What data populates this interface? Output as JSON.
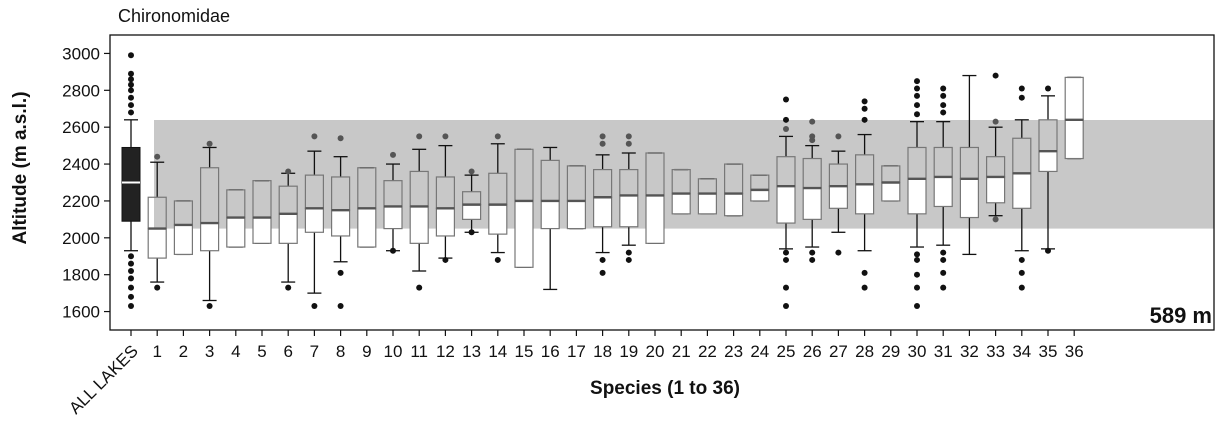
{
  "chart_data": {
    "type": "boxplot",
    "title": "Chironomidae",
    "xlabel": "Species (1 to 36)",
    "ylabel": "Altitude (m a.s.l.)",
    "ylim": [
      1500,
      3100
    ],
    "yticks": [
      1600,
      1800,
      2000,
      2200,
      2400,
      2600,
      2800,
      3000
    ],
    "categories": [
      "ALL LAKES",
      "1",
      "2",
      "3",
      "4",
      "5",
      "6",
      "7",
      "8",
      "9",
      "10",
      "11",
      "12",
      "13",
      "14",
      "15",
      "16",
      "17",
      "18",
      "19",
      "20",
      "21",
      "22",
      "23",
      "24",
      "25",
      "26",
      "27",
      "28",
      "29",
      "30",
      "31",
      "32",
      "33",
      "34",
      "35",
      "36"
    ],
    "band": {
      "low": 2050,
      "high": 2639,
      "label": "589 m",
      "color": "#c8c8c8"
    },
    "colors": {
      "all_lakes_box": "#222222",
      "species_box": "#777777",
      "band": "#c8c8c8",
      "range_label": "#aaaaaa"
    },
    "boxes": [
      {
        "category": "ALL LAKES",
        "whisker_low": 1930,
        "q1": 2090,
        "median": 2300,
        "q3": 2490,
        "whisker_high": 2640,
        "outliers": [
          1630,
          1680,
          1730,
          1780,
          1820,
          1860,
          1900,
          2680,
          2720,
          2760,
          2800,
          2830,
          2860,
          2890,
          2990
        ]
      },
      {
        "category": "1",
        "whisker_low": 1760,
        "q1": 1890,
        "median": 2050,
        "q3": 2220,
        "whisker_high": 2410,
        "outliers": [
          1730,
          2440
        ]
      },
      {
        "category": "2",
        "whisker_low": 1910,
        "q1": 1910,
        "median": 2070,
        "q3": 2200,
        "whisker_high": 2200,
        "outliers": []
      },
      {
        "category": "3",
        "whisker_low": 1660,
        "q1": 1930,
        "median": 2080,
        "q3": 2380,
        "whisker_high": 2490,
        "outliers": [
          1630,
          2510
        ]
      },
      {
        "category": "4",
        "whisker_low": 1950,
        "q1": 1950,
        "median": 2110,
        "q3": 2260,
        "whisker_high": 2260,
        "outliers": []
      },
      {
        "category": "5",
        "whisker_low": 1970,
        "q1": 1970,
        "median": 2110,
        "q3": 2310,
        "whisker_high": 2310,
        "outliers": []
      },
      {
        "category": "6",
        "whisker_low": 1760,
        "q1": 1970,
        "median": 2130,
        "q3": 2280,
        "whisker_high": 2350,
        "outliers": [
          1730,
          2360
        ]
      },
      {
        "category": "7",
        "whisker_low": 1700,
        "q1": 2030,
        "median": 2160,
        "q3": 2340,
        "whisker_high": 2470,
        "outliers": [
          1630,
          2550
        ]
      },
      {
        "category": "8",
        "whisker_low": 1870,
        "q1": 2010,
        "median": 2150,
        "q3": 2330,
        "whisker_high": 2440,
        "outliers": [
          1630,
          1810,
          2540
        ]
      },
      {
        "category": "9",
        "whisker_low": 1950,
        "q1": 1950,
        "median": 2160,
        "q3": 2380,
        "whisker_high": 2380,
        "outliers": []
      },
      {
        "category": "10",
        "whisker_low": 1930,
        "q1": 2050,
        "median": 2170,
        "q3": 2310,
        "whisker_high": 2400,
        "outliers": [
          1930,
          2450
        ]
      },
      {
        "category": "11",
        "whisker_low": 1820,
        "q1": 1970,
        "median": 2170,
        "q3": 2360,
        "whisker_high": 2480,
        "outliers": [
          1730,
          2550
        ]
      },
      {
        "category": "12",
        "whisker_low": 1890,
        "q1": 2010,
        "median": 2160,
        "q3": 2330,
        "whisker_high": 2500,
        "outliers": [
          1880,
          2550
        ]
      },
      {
        "category": "13",
        "whisker_low": 2030,
        "q1": 2100,
        "median": 2180,
        "q3": 2250,
        "whisker_high": 2340,
        "outliers": [
          2030,
          2360
        ]
      },
      {
        "category": "14",
        "whisker_low": 1920,
        "q1": 2020,
        "median": 2180,
        "q3": 2350,
        "whisker_high": 2510,
        "outliers": [
          1880,
          2550
        ]
      },
      {
        "category": "15",
        "whisker_low": 1840,
        "q1": 1840,
        "median": 2200,
        "q3": 2480,
        "whisker_high": 2480,
        "outliers": []
      },
      {
        "category": "16",
        "whisker_low": 1720,
        "q1": 2050,
        "median": 2200,
        "q3": 2420,
        "whisker_high": 2490,
        "outliers": []
      },
      {
        "category": "17",
        "whisker_low": 2050,
        "q1": 2050,
        "median": 2200,
        "q3": 2390,
        "whisker_high": 2390,
        "outliers": []
      },
      {
        "category": "18",
        "whisker_low": 1920,
        "q1": 2060,
        "median": 2220,
        "q3": 2370,
        "whisker_high": 2450,
        "outliers": [
          1810,
          1880,
          2510,
          2550
        ]
      },
      {
        "category": "19",
        "whisker_low": 1960,
        "q1": 2060,
        "median": 2230,
        "q3": 2370,
        "whisker_high": 2460,
        "outliers": [
          1880,
          1920,
          2510,
          2550
        ]
      },
      {
        "category": "20",
        "whisker_low": 1970,
        "q1": 1970,
        "median": 2230,
        "q3": 2460,
        "whisker_high": 2460,
        "outliers": []
      },
      {
        "category": "21",
        "whisker_low": 2130,
        "q1": 2130,
        "median": 2240,
        "q3": 2370,
        "whisker_high": 2370,
        "outliers": []
      },
      {
        "category": "22",
        "whisker_low": 2130,
        "q1": 2130,
        "median": 2240,
        "q3": 2320,
        "whisker_high": 2320,
        "outliers": []
      },
      {
        "category": "23",
        "whisker_low": 2120,
        "q1": 2120,
        "median": 2240,
        "q3": 2400,
        "whisker_high": 2400,
        "outliers": []
      },
      {
        "category": "24",
        "whisker_low": 2200,
        "q1": 2200,
        "median": 2260,
        "q3": 2340,
        "whisker_high": 2340,
        "outliers": []
      },
      {
        "category": "25",
        "whisker_low": 1940,
        "q1": 2080,
        "median": 2280,
        "q3": 2440,
        "whisker_high": 2550,
        "outliers": [
          1630,
          1730,
          1880,
          1920,
          2590,
          2640,
          2750
        ]
      },
      {
        "category": "26",
        "whisker_low": 1950,
        "q1": 2100,
        "median": 2270,
        "q3": 2430,
        "whisker_high": 2500,
        "outliers": [
          1880,
          1920,
          2530,
          2550,
          2630
        ]
      },
      {
        "category": "27",
        "whisker_low": 2030,
        "q1": 2160,
        "median": 2280,
        "q3": 2400,
        "whisker_high": 2470,
        "outliers": [
          1920,
          2550
        ]
      },
      {
        "category": "28",
        "whisker_low": 1930,
        "q1": 2130,
        "median": 2290,
        "q3": 2450,
        "whisker_high": 2560,
        "outliers": [
          1730,
          1810,
          2640,
          2700,
          2740
        ]
      },
      {
        "category": "29",
        "whisker_low": 2200,
        "q1": 2200,
        "median": 2300,
        "q3": 2390,
        "whisker_high": 2390,
        "outliers": []
      },
      {
        "category": "30",
        "whisker_low": 1950,
        "q1": 2130,
        "median": 2320,
        "q3": 2490,
        "whisker_high": 2630,
        "outliers": [
          1630,
          1730,
          1800,
          1880,
          1910,
          2670,
          2720,
          2770,
          2810,
          2850
        ]
      },
      {
        "category": "31",
        "whisker_low": 1960,
        "q1": 2170,
        "median": 2330,
        "q3": 2490,
        "whisker_high": 2630,
        "outliers": [
          1730,
          1810,
          1880,
          1920,
          2680,
          2720,
          2770,
          2810
        ]
      },
      {
        "category": "32",
        "whisker_low": 1910,
        "q1": 2110,
        "median": 2320,
        "q3": 2490,
        "whisker_high": 2880,
        "outliers": []
      },
      {
        "category": "33",
        "whisker_low": 2120,
        "q1": 2190,
        "median": 2330,
        "q3": 2440,
        "whisker_high": 2600,
        "outliers": [
          2100,
          2630,
          2880
        ]
      },
      {
        "category": "34",
        "whisker_low": 1930,
        "q1": 2160,
        "median": 2350,
        "q3": 2540,
        "whisker_high": 2640,
        "outliers": [
          1730,
          1810,
          1880,
          2760,
          2810
        ]
      },
      {
        "category": "35",
        "whisker_low": 1940,
        "q1": 2360,
        "median": 2470,
        "q3": 2640,
        "whisker_high": 2770,
        "outliers": [
          1930,
          2810
        ]
      },
      {
        "category": "36",
        "whisker_low": 2430,
        "q1": 2430,
        "median": 2640,
        "q3": 2870,
        "whisker_high": 2870,
        "outliers": []
      }
    ]
  }
}
